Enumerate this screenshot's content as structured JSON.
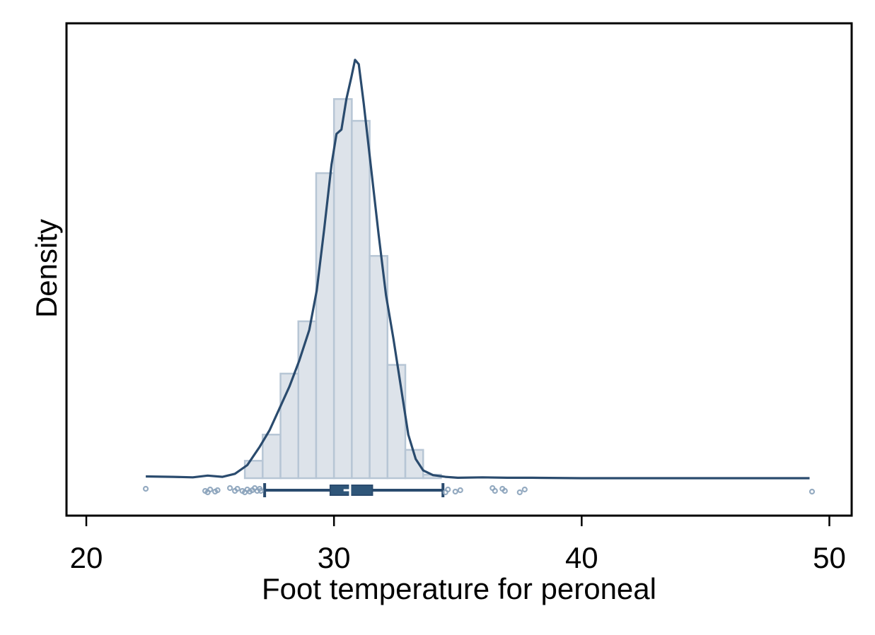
{
  "chart_data": {
    "type": "histogram",
    "title": "",
    "xlabel": "Foot temperature for peroneal",
    "ylabel": "Density",
    "xlim": [
      19.2,
      50.9
    ],
    "ylim": [
      0,
      1.0
    ],
    "x_ticks": [
      20,
      30,
      40,
      50
    ],
    "y_ticks": [],
    "grid": false,
    "colors": {
      "bar_fill": "#dde3ea",
      "bar_stroke": "#b7c6d5",
      "line": "#2a4b6e",
      "box": "#2a4b6e",
      "outlier": "#8aa2ba"
    },
    "histogram": {
      "bins": [
        {
          "x0": 26.4,
          "x1": 27.12,
          "y": 0.04
        },
        {
          "x0": 27.12,
          "x1": 27.84,
          "y": 0.1
        },
        {
          "x0": 27.84,
          "x1": 28.56,
          "y": 0.24
        },
        {
          "x0": 28.56,
          "x1": 29.28,
          "y": 0.36
        },
        {
          "x0": 29.28,
          "x1": 30.0,
          "y": 0.7
        },
        {
          "x0": 30.0,
          "x1": 30.72,
          "y": 0.87
        },
        {
          "x0": 30.72,
          "x1": 31.44,
          "y": 0.82
        },
        {
          "x0": 31.44,
          "x1": 32.16,
          "y": 0.51
        },
        {
          "x0": 32.16,
          "x1": 32.88,
          "y": 0.26
        },
        {
          "x0": 32.88,
          "x1": 33.6,
          "y": 0.065
        },
        {
          "x0": 33.6,
          "x1": 34.32,
          "y": 0.008
        }
      ]
    },
    "density_line": {
      "x": [
        22.4,
        23.5,
        24.3,
        24.9,
        25.5,
        26.0,
        26.5,
        27.0,
        27.4,
        27.8,
        28.2,
        28.6,
        29.0,
        29.3,
        29.6,
        29.9,
        30.1,
        30.3,
        30.5,
        30.7,
        30.85,
        31.0,
        31.2,
        31.5,
        31.8,
        32.1,
        32.4,
        32.7,
        33.0,
        33.3,
        33.6,
        34.0,
        34.5,
        35.0,
        36.0,
        37.0,
        38.0,
        40.0,
        45.0,
        49.2
      ],
      "y": [
        0.004,
        0.003,
        0.002,
        0.006,
        0.003,
        0.01,
        0.03,
        0.072,
        0.11,
        0.16,
        0.21,
        0.27,
        0.34,
        0.43,
        0.57,
        0.72,
        0.79,
        0.8,
        0.87,
        0.92,
        0.96,
        0.95,
        0.86,
        0.71,
        0.56,
        0.42,
        0.32,
        0.21,
        0.1,
        0.044,
        0.018,
        0.007,
        0.003,
        0.001,
        0.002,
        0.001,
        0.001,
        0.0,
        0.0,
        0.0
      ]
    },
    "boxplot": {
      "whisker_low": 27.2,
      "q1": 29.85,
      "median": 30.65,
      "q3": 31.55,
      "whisker_high": 34.4,
      "mean": 30.5,
      "outliers": [
        22.4,
        24.8,
        24.9,
        25.0,
        25.2,
        25.3,
        25.8,
        26.0,
        26.1,
        26.3,
        26.4,
        26.5,
        26.6,
        26.7,
        26.8,
        26.9,
        27.0,
        27.05,
        34.5,
        34.6,
        34.9,
        35.1,
        36.4,
        36.5,
        36.8,
        36.9,
        37.5,
        37.7,
        49.3
      ]
    }
  }
}
